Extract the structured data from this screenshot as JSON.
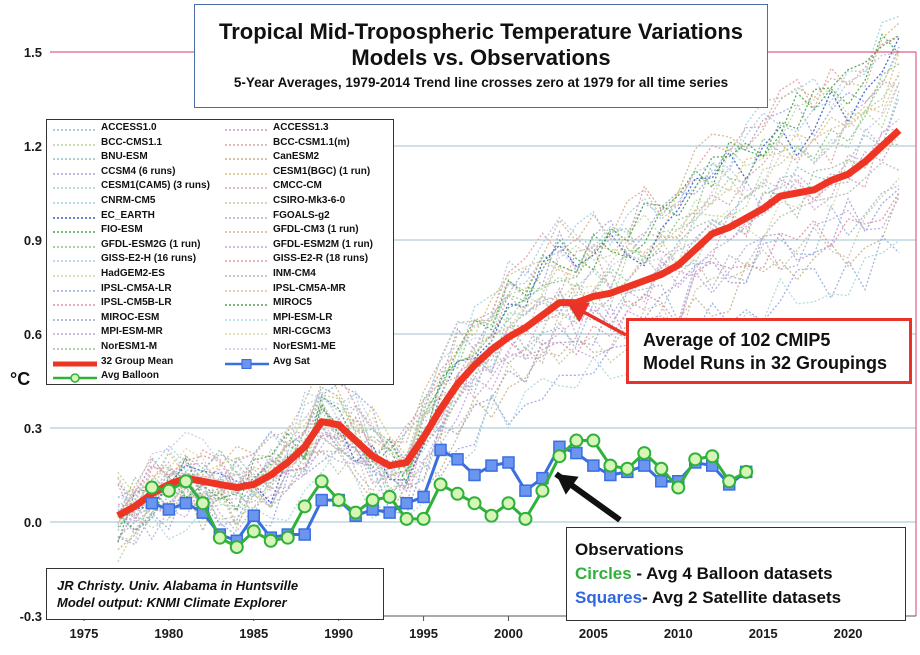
{
  "chart_data": {
    "type": "line",
    "title": "Tropical Mid-Tropospheric Temperature Variations",
    "subtitle": "Models vs. Observations",
    "subtitle2": "5-Year Averages, 1979-2014 Trend line crosses zero at 1979 for all time series",
    "ylabel": "°C",
    "xlim": [
      1973,
      2024
    ],
    "ylim": [
      -0.3,
      1.5
    ],
    "xticks": [
      1975,
      1980,
      1985,
      1990,
      1995,
      2000,
      2005,
      2010,
      2015,
      2020
    ],
    "yticks": [
      "-0.3",
      "0.0",
      "0.3",
      "0.6",
      "0.9",
      "1.2",
      "1.5"
    ],
    "grid": true,
    "legend_position": "upper-left",
    "legend": [
      "ACCESS1.0",
      "ACCESS1.3",
      "BCC-CMS1.1",
      "BCC-CSM1.1(m)",
      "BNU-ESM",
      "CanESM2",
      "CCSM4 (6 runs)",
      "CESM1(BGC) (1 run)",
      "CESM1(CAM5) (3 runs)",
      "CMCC-CM",
      "CNRM-CM5",
      "CSIRO-Mk3-6-0",
      "EC_EARTH",
      "FGOALS-g2",
      "FIO-ESM",
      "GFDL-CM3 (1 run)",
      "GFDL-ESM2G (1 run)",
      "GFDL-ESM2M (1 run)",
      "GISS-E2-H (16 runs)",
      "GISS-E2-R (18 runs)",
      "HadGEM2-ES",
      "INM-CM4",
      "IPSL-CM5A-LR",
      "IPSL-CM5A-MR",
      "IPSL-CM5B-LR",
      "MIROC5",
      "MIROC-ESM",
      "MPI-ESM-LR",
      "MPI-ESM-MR",
      "MRI-CGCM3",
      "NorESM1-M",
      "NorESM1-ME",
      "32 Group Mean",
      "Avg Sat",
      "Avg Balloon"
    ],
    "model_colors": [
      "#9ab8d6",
      "#c49ac4",
      "#b7d39b",
      "#d6a6a6",
      "#8fc4c4",
      "#c9b08a",
      "#a3a3d9",
      "#d9c27a",
      "#a9d2b4",
      "#d8a0bd",
      "#9fd0e0",
      "#c7c7a0",
      "#3b58c8",
      "#b0b0d0",
      "#3ea83e",
      "#d4b48c",
      "#88c488",
      "#c8a8d8",
      "#a8c8e8",
      "#e0a0a0",
      "#c0d8a0",
      "#b8b8b8",
      "#98a8e0",
      "#e0c0a0",
      "#e090a8",
      "#50a050",
      "#a0a0d8",
      "#a8d8d8",
      "#c0a8d8",
      "#d8d8a8",
      "#a0c0a0",
      "#c8c8e8"
    ],
    "series": [
      {
        "name": "32 Group Mean",
        "color": "#ee3524",
        "x": [
          1977,
          1978,
          1979,
          1980,
          1981,
          1982,
          1983,
          1984,
          1985,
          1986,
          1987,
          1988,
          1989,
          1990,
          1991,
          1992,
          1993,
          1994,
          1995,
          1996,
          1997,
          1998,
          1999,
          2000,
          2001,
          2002,
          2003,
          2004,
          2005,
          2006,
          2007,
          2008,
          2009,
          2010,
          2011,
          2012,
          2013,
          2014,
          2015,
          2016,
          2017,
          2018,
          2019,
          2020,
          2021,
          2022,
          2023
        ],
        "values": [
          0.02,
          0.05,
          0.09,
          0.12,
          0.14,
          0.13,
          0.12,
          0.11,
          0.12,
          0.15,
          0.19,
          0.24,
          0.32,
          0.31,
          0.26,
          0.21,
          0.18,
          0.19,
          0.27,
          0.36,
          0.44,
          0.5,
          0.55,
          0.59,
          0.62,
          0.66,
          0.7,
          0.7,
          0.72,
          0.73,
          0.75,
          0.77,
          0.79,
          0.82,
          0.87,
          0.92,
          0.94,
          0.97,
          1.0,
          1.04,
          1.05,
          1.06,
          1.09,
          1.11,
          1.15,
          1.2,
          1.25
        ]
      },
      {
        "name": "Avg Sat",
        "color": "#3a6fe0",
        "x": [
          1979,
          1980,
          1981,
          1982,
          1983,
          1984,
          1985,
          1986,
          1987,
          1988,
          1989,
          1990,
          1991,
          1992,
          1993,
          1994,
          1995,
          1996,
          1997,
          1998,
          1999,
          2000,
          2001,
          2002,
          2003,
          2004,
          2005,
          2006,
          2007,
          2008,
          2009,
          2010,
          2011,
          2012,
          2013,
          2014
        ],
        "values": [
          0.06,
          0.04,
          0.06,
          0.03,
          -0.04,
          -0.06,
          0.02,
          -0.05,
          -0.04,
          -0.04,
          0.07,
          0.07,
          0.02,
          0.04,
          0.03,
          0.06,
          0.08,
          0.23,
          0.2,
          0.15,
          0.18,
          0.19,
          0.1,
          0.14,
          0.24,
          0.22,
          0.18,
          0.15,
          0.16,
          0.18,
          0.13,
          0.13,
          0.19,
          0.18,
          0.12,
          0.16
        ]
      },
      {
        "name": "Avg Balloon",
        "color": "#2fb13a",
        "x": [
          1979,
          1980,
          1981,
          1982,
          1983,
          1984,
          1985,
          1986,
          1987,
          1988,
          1989,
          1990,
          1991,
          1992,
          1993,
          1994,
          1995,
          1996,
          1997,
          1998,
          1999,
          2000,
          2001,
          2002,
          2003,
          2004,
          2005,
          2006,
          2007,
          2008,
          2009,
          2010,
          2011,
          2012,
          2013,
          2014
        ],
        "values": [
          0.11,
          0.1,
          0.13,
          0.06,
          -0.05,
          -0.08,
          -0.03,
          -0.06,
          -0.05,
          0.05,
          0.13,
          0.07,
          0.03,
          0.07,
          0.08,
          0.01,
          0.01,
          0.12,
          0.09,
          0.06,
          0.02,
          0.06,
          0.01,
          0.1,
          0.21,
          0.26,
          0.26,
          0.18,
          0.17,
          0.22,
          0.17,
          0.11,
          0.2,
          0.21,
          0.13,
          0.16
        ]
      }
    ],
    "annotations": {
      "model_average": [
        "Average of 102 CMIP5",
        "Model Runs in 32 Groupings"
      ],
      "observations_title": "Observations",
      "balloon_word": "Circles",
      "balloon_text": " - Avg 4 Balloon datasets",
      "sat_word": "Squares",
      "sat_text": "- Avg 2 Satellite datasets",
      "credit": [
        "JR Christy. Univ. Alabama in Huntsville",
        "Model output: KNMI Climate Explorer"
      ]
    }
  }
}
